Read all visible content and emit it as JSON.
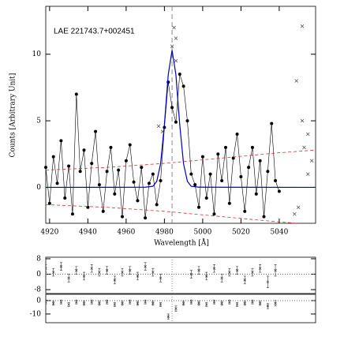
{
  "chart_data": [
    {
      "type": "line",
      "title": "LAE 221743.7+002451",
      "xlabel": "Wavelength [Å]",
      "ylabel": "Counts [Arbitrary Unit]",
      "xlim": [
        4918,
        5059
      ],
      "ylim": [
        -2.7,
        13.6
      ],
      "xticks": [
        4920,
        4940,
        4960,
        4980,
        5000,
        5020,
        5040
      ],
      "yticks": [
        0,
        5,
        10
      ],
      "vline": 4984,
      "series": [
        {
          "color": "#000000",
          "style": "dots",
          "x": [
            4918,
            4920,
            4922,
            4924,
            4926,
            4928,
            4930,
            4932,
            4934,
            4936,
            4938,
            4940,
            4942,
            4944,
            4946,
            4948,
            4950,
            4952,
            4954,
            4956,
            4958,
            4960,
            4962,
            4964,
            4966,
            4968,
            4970,
            4972,
            4974,
            4976,
            4978,
            4980,
            4982,
            4984,
            4986,
            4988,
            4990,
            4992,
            4994,
            4996,
            4998,
            5000,
            5002,
            5004,
            5006,
            5008,
            5010,
            5012,
            5014,
            5016,
            5018,
            5020,
            5022,
            5024,
            5026,
            5028,
            5030,
            5032,
            5034,
            5036,
            5038,
            5040
          ],
          "values": [
            1.5,
            -1.2,
            2.3,
            0.3,
            3.5,
            -0.8,
            1.6,
            -2.0,
            7.0,
            1.2,
            2.8,
            -1.5,
            1.8,
            4.2,
            0.2,
            -1.8,
            1.2,
            3.0,
            -0.5,
            1.3,
            -2.2,
            2.0,
            3.2,
            0.4,
            -1.0,
            1.5,
            -2.3,
            0.3,
            1.0,
            -1.3,
            0.5,
            4.5,
            7.9,
            6.0,
            4.9,
            8.5,
            7.6,
            5.0,
            1.0,
            0.2,
            -1.5,
            2.3,
            -0.8,
            1.0,
            -2.0,
            2.5,
            0.5,
            3.0,
            -1.2,
            2.2,
            4.0,
            0.8,
            -1.8,
            1.5,
            3.0,
            -0.5,
            2.0,
            -2.2,
            1.2,
            4.8,
            0.5,
            -0.3
          ]
        },
        {
          "color": "#0000bb",
          "style": "line",
          "x": [
            4918,
            4970,
            4974,
            4976,
            4978,
            4980,
            4982,
            4984,
            4986,
            4988,
            4990,
            4992,
            4994,
            4998,
            5059
          ],
          "values": [
            0,
            0.01,
            0.08,
            0.45,
            1.77,
            4.72,
            8.47,
            10.3,
            8.47,
            4.72,
            1.77,
            0.45,
            0.08,
            0.01,
            0
          ]
        },
        {
          "color": "#cc3333",
          "style": "dashed",
          "x": [
            4918,
            4950,
            4980,
            5010,
            5040,
            5059
          ],
          "values": [
            1.3,
            1.5,
            1.8,
            2.2,
            2.6,
            2.8
          ]
        },
        {
          "color": "#cc3333",
          "style": "dashed",
          "x": [
            4918,
            4950,
            4980,
            5010,
            5040,
            5059
          ],
          "values": [
            -1.3,
            -1.5,
            -1.8,
            -2.2,
            -2.6,
            -2.8
          ]
        },
        {
          "color": "#444444",
          "style": "cross",
          "x": [
            4985,
            4986,
            4984,
            4986,
            4977,
            4979,
            5052,
            5049,
            5052,
            5055,
            5053,
            5057,
            5055,
            5050,
            5048
          ],
          "values": [
            12.0,
            11.2,
            10.6,
            9.5,
            4.6,
            4.2,
            12.1,
            8.0,
            5.0,
            4.0,
            3.0,
            2.0,
            1.0,
            -1.5,
            -2.0
          ]
        }
      ]
    },
    {
      "type": "errorbar",
      "xlim": [
        4918,
        5059
      ],
      "ylim": [
        -10,
        8.8
      ],
      "yticks": [
        -8,
        0,
        8
      ],
      "vline": 4984,
      "hline": 0,
      "series": [
        {
          "color": "#333333",
          "style": "errorbar",
          "x": [
            4918,
            4922,
            4926,
            4930,
            4934,
            4938,
            4942,
            4946,
            4950,
            4954,
            4958,
            4962,
            4966,
            4970,
            4974,
            4978,
            4982,
            4986,
            4990,
            4994,
            4998,
            5002,
            5006,
            5010,
            5014,
            5018,
            5022,
            5026,
            5030,
            5034,
            5038
          ],
          "values": [
            3,
            1,
            4,
            -2,
            2,
            -1,
            3,
            1,
            2,
            -3,
            1,
            2,
            -1,
            4,
            1,
            -2,
            null,
            null,
            null,
            0,
            2,
            -1,
            3,
            -2,
            1,
            2,
            -3,
            1,
            3,
            -4,
            2
          ],
          "errors": [
            2,
            2,
            2,
            2,
            2,
            2,
            2,
            2,
            2,
            2,
            2,
            2,
            2,
            2,
            2,
            2,
            null,
            null,
            null,
            2,
            2,
            2,
            2,
            2,
            2,
            2,
            2,
            2,
            2,
            3,
            3
          ]
        }
      ]
    },
    {
      "type": "errorbar",
      "xlim": [
        4918,
        5059
      ],
      "ylim": [
        -16.5,
        4.7
      ],
      "yticks": [
        -10,
        0
      ],
      "vline": 4984,
      "hline": 0,
      "series": [
        {
          "color": "#333333",
          "style": "errorbar",
          "x": [
            4918,
            4922,
            4926,
            4930,
            4934,
            4938,
            4942,
            4946,
            4950,
            4954,
            4958,
            4962,
            4966,
            4970,
            4974,
            4978,
            4982,
            4986,
            4990,
            4994,
            4998,
            5002,
            5006,
            5010,
            5014,
            5018,
            5022,
            5026,
            5030,
            5034,
            5038
          ],
          "values": [
            -1,
            -2,
            -1,
            -3,
            -1,
            -2,
            -1,
            -2,
            -1,
            -3,
            -2,
            -1,
            -2,
            -1,
            -2,
            -3,
            -12,
            -6,
            -2,
            -1,
            -2,
            -3,
            -1,
            -2,
            -1,
            -3,
            -2,
            -1,
            -2,
            -4,
            -2
          ],
          "errors": [
            1.5,
            1.5,
            1.5,
            1.5,
            1.5,
            1.5,
            1.5,
            1.5,
            1.5,
            1.5,
            1.5,
            1.5,
            1.5,
            1.5,
            1.5,
            1.5,
            2,
            2,
            1.5,
            1.5,
            1.5,
            1.5,
            1.5,
            1.5,
            1.5,
            1.5,
            1.5,
            1.5,
            1.5,
            2,
            2
          ]
        }
      ]
    }
  ]
}
